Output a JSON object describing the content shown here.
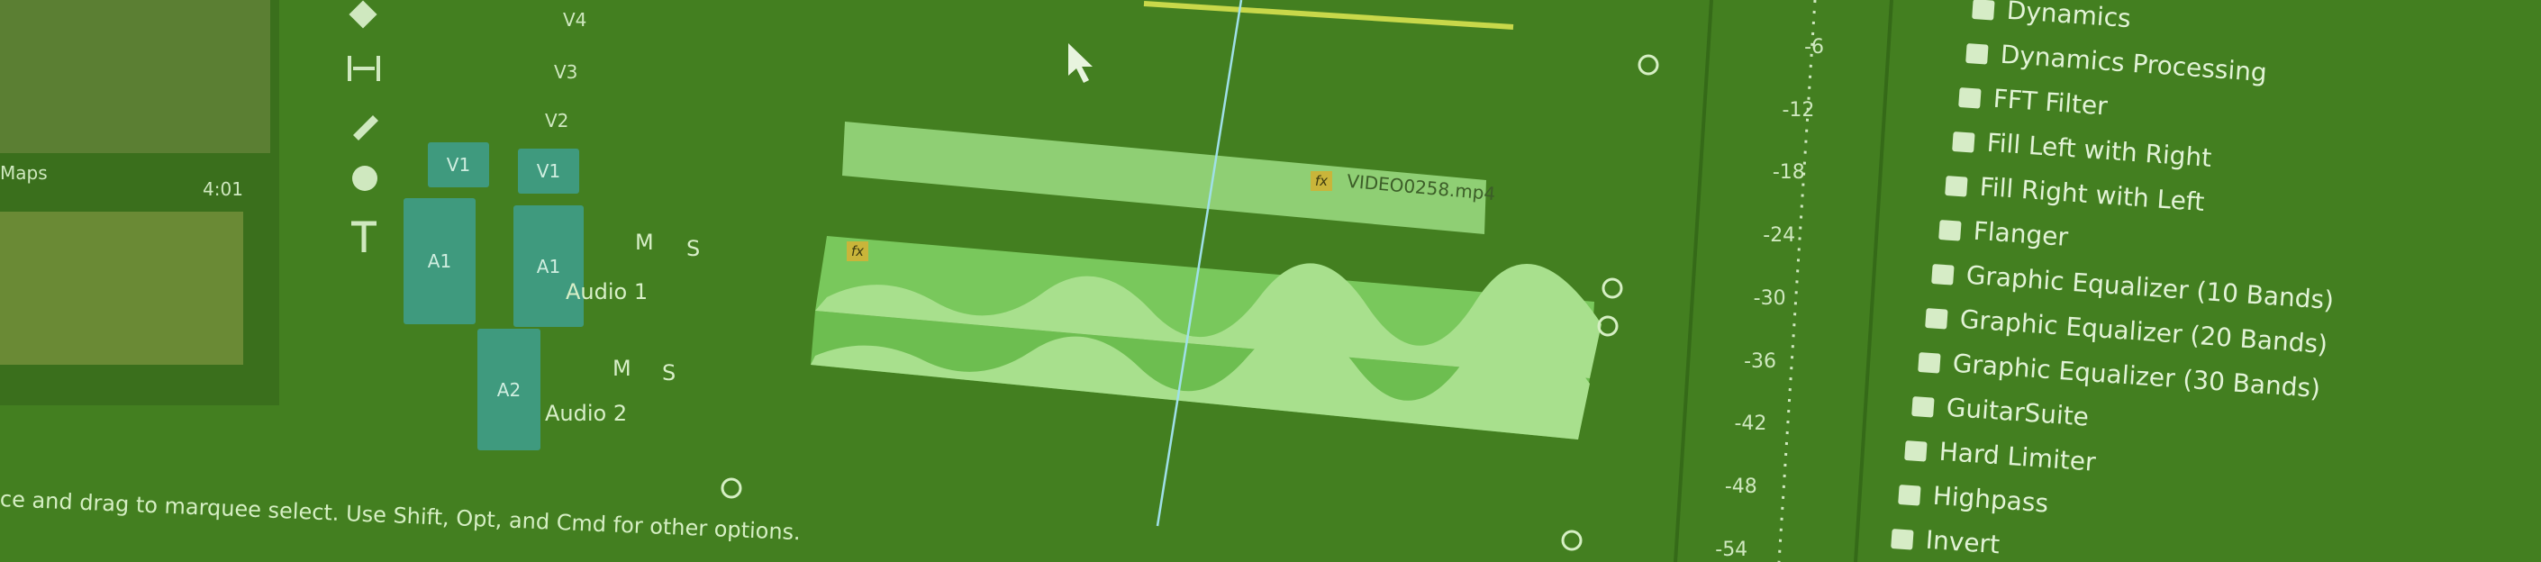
{
  "project_panel": {
    "item_name": "Maps",
    "item_duration": "4:01"
  },
  "tracks": {
    "video": [
      {
        "label": "V4"
      },
      {
        "label": "V3"
      },
      {
        "label": "V2"
      },
      {
        "label": "V1",
        "source_patch": "V1"
      }
    ],
    "audio": [
      {
        "label": "A1",
        "source_patch": "A1",
        "name": "Audio 1",
        "mute": "M",
        "solo": "S"
      },
      {
        "label": "A2",
        "name": "Audio 2",
        "mute": "M",
        "solo": "S"
      }
    ]
  },
  "clips": [
    {
      "name": "VIDEO0258.mp4",
      "badge": "fx"
    },
    {
      "badge": "fx"
    }
  ],
  "status_bar": "ce and drag to marquee select. Use Shift, Opt, and Cmd for other options.",
  "meter_scale": [
    "-6",
    "-12",
    "-18",
    "-24",
    "-30",
    "-36",
    "-42",
    "-48",
    "-54"
  ],
  "effects": [
    "Dynamics",
    "Dynamics Processing",
    "FFT Filter",
    "Fill Left with Right",
    "Fill Right with Left",
    "Flanger",
    "Graphic Equalizer (10 Bands)",
    "Graphic Equalizer (20 Bands)",
    "Graphic Equalizer (30 Bands)",
    "GuitarSuite",
    "Hard Limiter",
    "Highpass",
    "Invert"
  ]
}
